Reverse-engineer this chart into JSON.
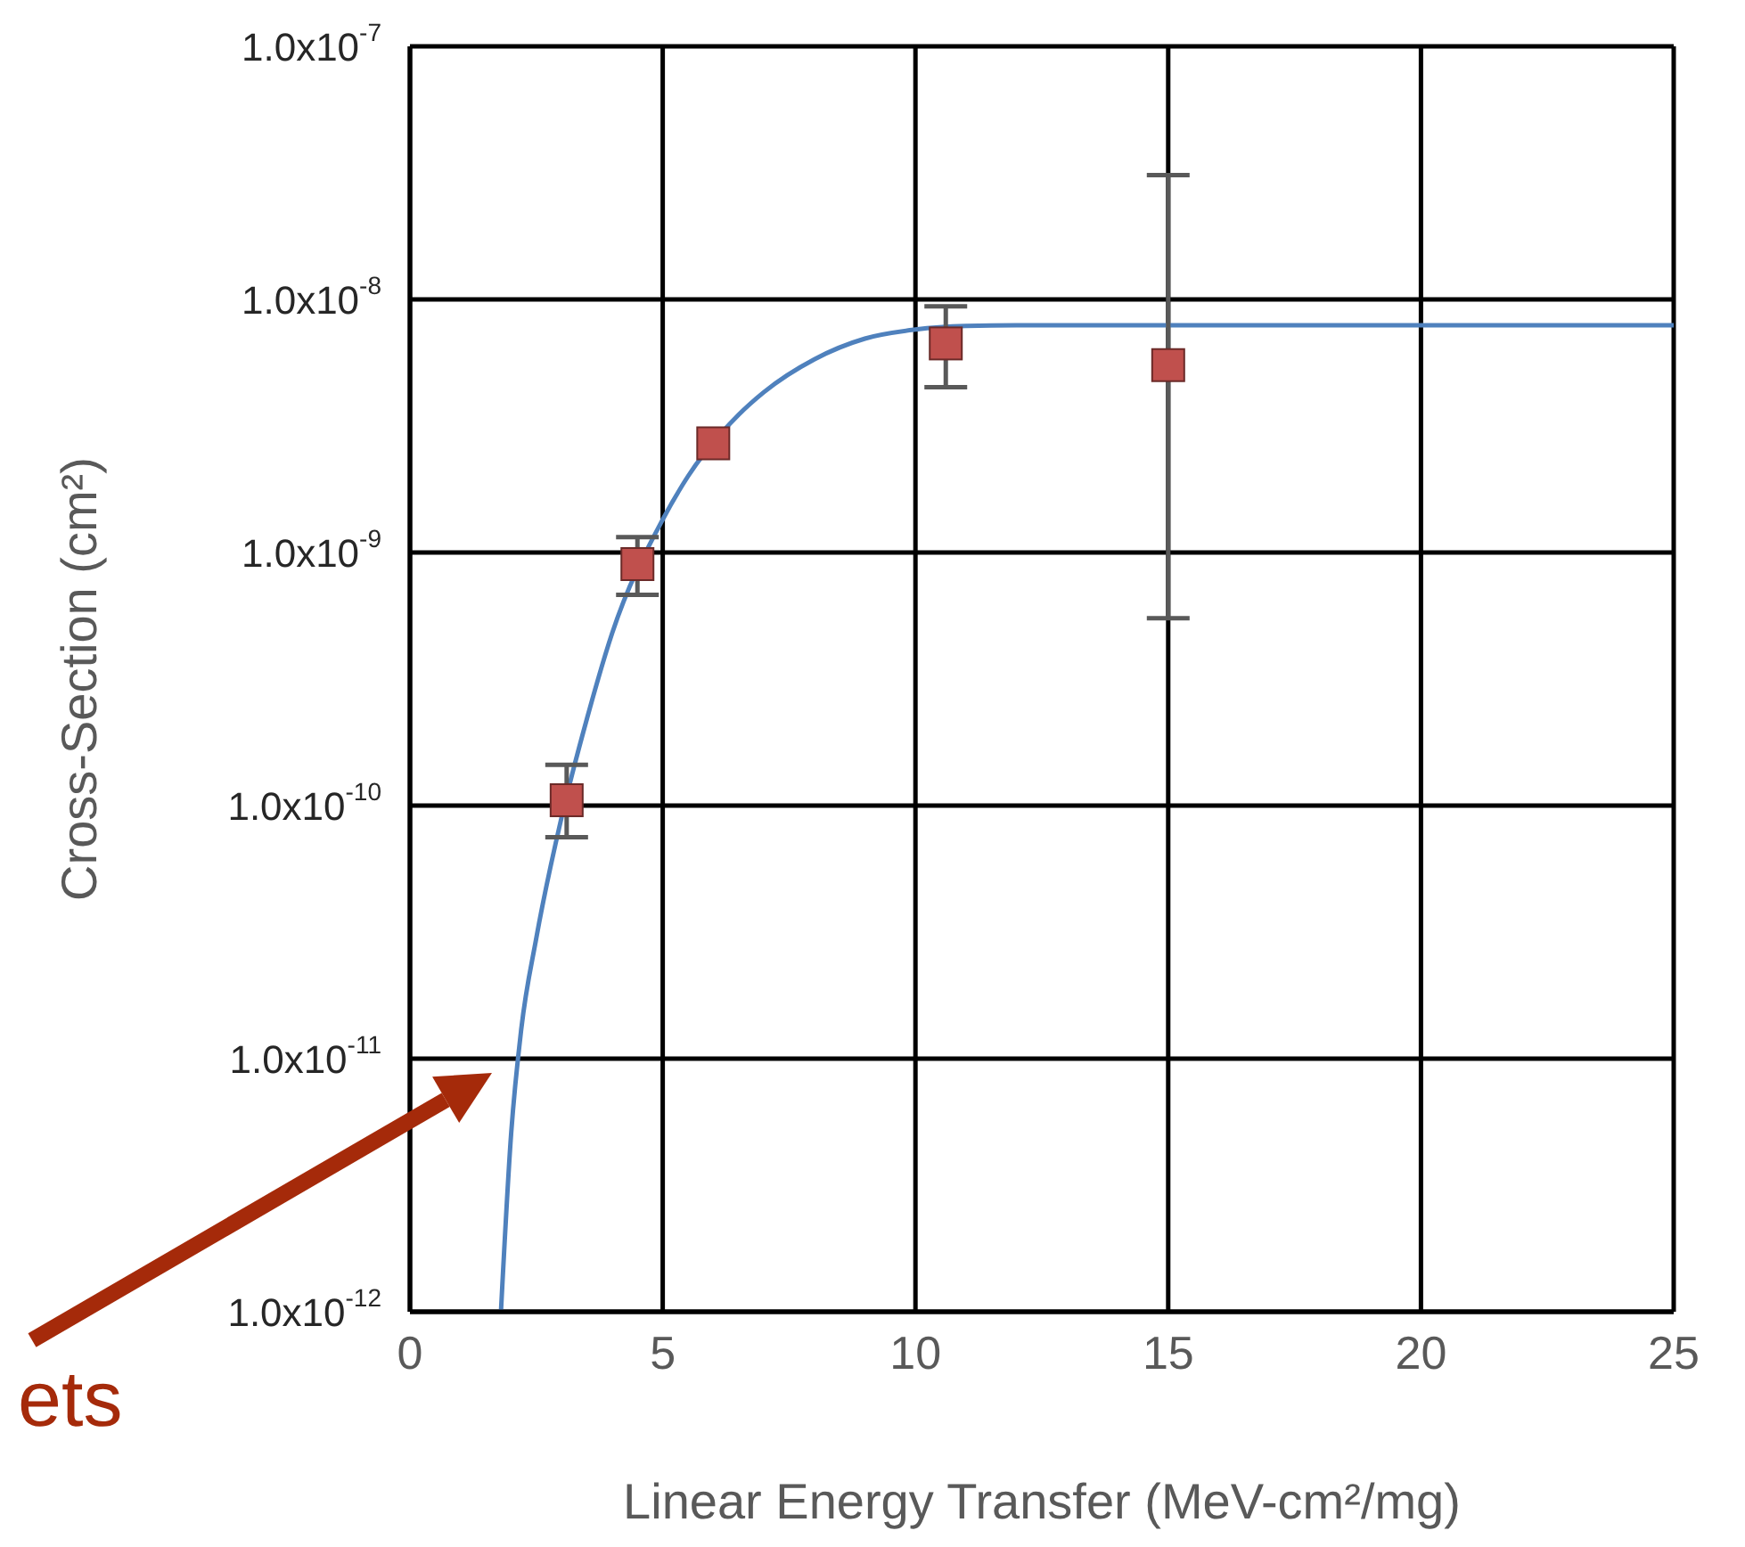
{
  "chart_data": {
    "type": "scatter",
    "xlabel": "Linear Energy Transfer (MeV-cm²/mg)",
    "ylabel": "Cross-Section (cm²)",
    "log": "y",
    "grid": true,
    "marker": "square",
    "xlim": [
      0,
      25
    ],
    "xticks": [
      0,
      5,
      10,
      15,
      20,
      25
    ],
    "ylim": [
      1e-12,
      1e-07
    ],
    "yticks": [
      {
        "value": 1e-12,
        "label": "1.0x10$^{-12}$"
      },
      {
        "value": 1e-11,
        "label": "1.0x10$^{-11}$"
      },
      {
        "value": 1e-10,
        "label": "1.0x10$^{-10}$"
      },
      {
        "value": 1e-09,
        "label": "1.0x10$^{-9}$"
      },
      {
        "value": 1e-08,
        "label": "1.0x10$^{-8}$"
      },
      {
        "value": 1e-07,
        "label": "1.0x10$^{-7}$"
      }
    ],
    "series": [
      {
        "type": "line",
        "color": "#4f81bd",
        "marker": "none",
        "line_style": "solid",
        "x": [
          1.8,
          2.0,
          2.2,
          2.5,
          3.0,
          3.5,
          4.0,
          5.0,
          5.5,
          6.5,
          7.0,
          8.0,
          9.0,
          10.0,
          11.0,
          12.0,
          15.0,
          25.0
        ],
        "values": [
          1e-12,
          5e-12,
          1.3e-11,
          3e-11,
          9e-11,
          2.2e-10,
          4.8e-10,
          1.35e-09,
          2e-09,
          3.5e-09,
          4.3e-09,
          5.8e-09,
          7e-09,
          7.6e-09,
          7.85e-09,
          7.9e-09,
          7.9e-09,
          7.9e-09
        ]
      },
      {
        "color": "#c0504d",
        "x": [
          3.1,
          4.5,
          6.0,
          10.6,
          15.0
        ],
        "values": [
          1.05e-10,
          9e-10,
          2.7e-09,
          6.7e-09,
          5.5e-09
        ],
        "errors": [
          [
            7.5e-11,
            1.45e-10
          ],
          [
            6.8e-10,
            1.15e-09
          ],
          null,
          [
            4.5e-09,
            9.4e-09
          ],
          [
            5.5e-10,
            3.1e-08
          ]
        ]
      }
    ],
    "annotations": [
      "ets"
    ]
  }
}
